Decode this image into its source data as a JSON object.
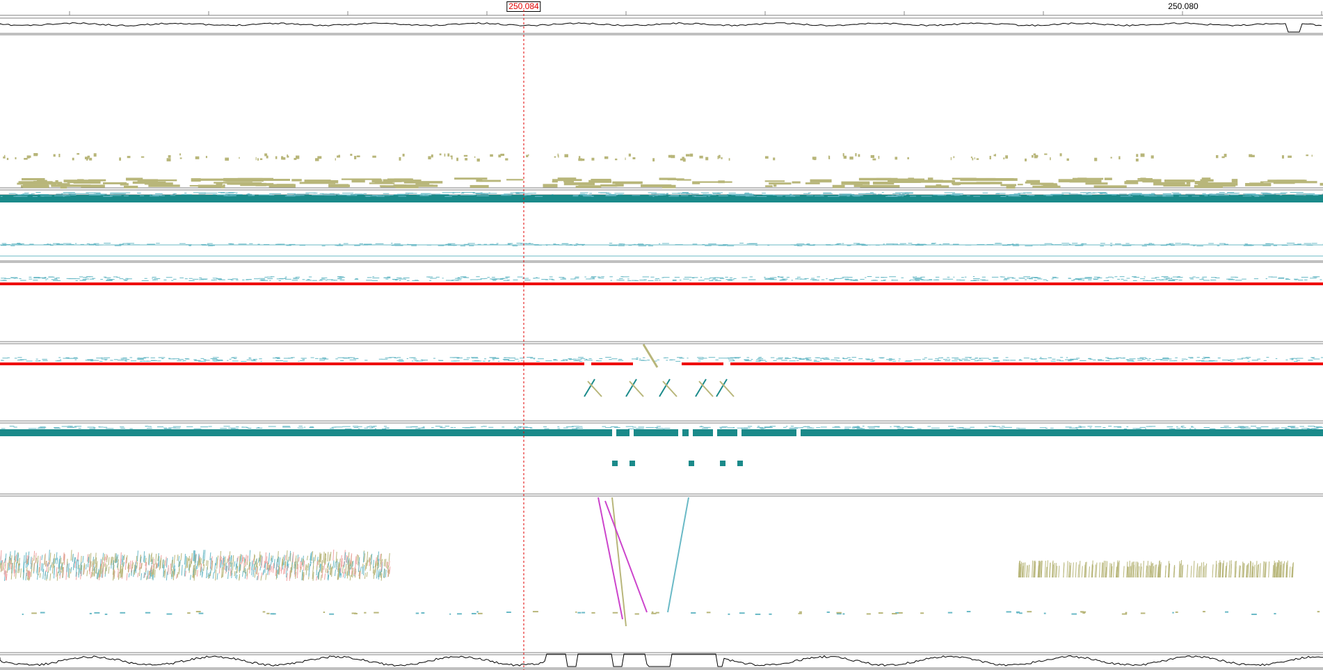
{
  "ruler": {
    "cursor_label": "250.084",
    "tick_label_right": "250.080"
  },
  "colors": {
    "teal": "#1a8a8a",
    "light_teal": "#69b9c6",
    "khaki": "#b8b67a",
    "red": "#ee0000",
    "magenta": "#cc44cc",
    "salmon": "#f0a0a0",
    "separator": "#808080",
    "cursor": "#e00000"
  },
  "tracks": [
    {
      "name": "top-profile-track"
    },
    {
      "name": "khaki-alignment-track"
    },
    {
      "name": "teal-coverage-track-1"
    },
    {
      "name": "light-teal-track"
    },
    {
      "name": "red-line-track-1"
    },
    {
      "name": "red-line-track-2"
    },
    {
      "name": "teal-coverage-track-2"
    },
    {
      "name": "scatter-track"
    },
    {
      "name": "bottom-profile-track"
    }
  ]
}
